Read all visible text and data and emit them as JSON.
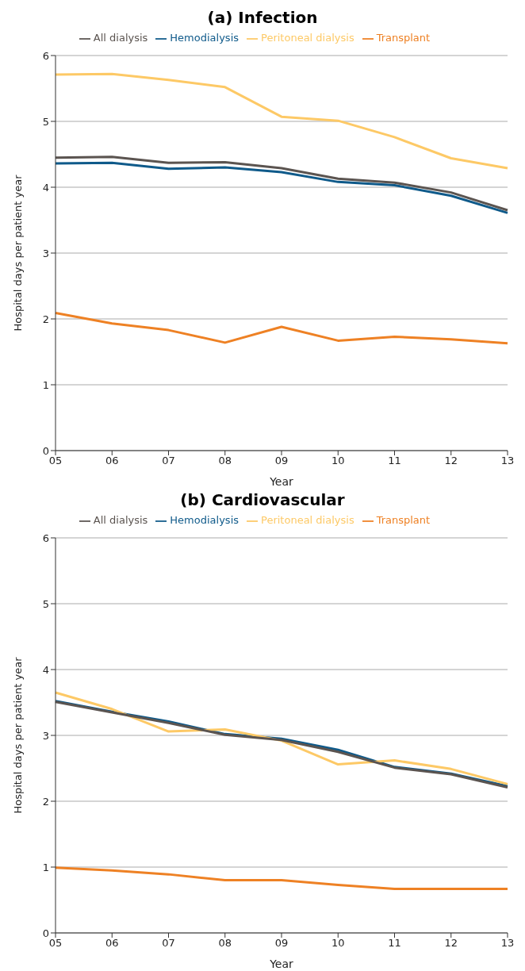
{
  "chart_data": [
    {
      "type": "line",
      "title": "(a) Infection",
      "xlabel": "Year",
      "ylabel": "Hospital days per patient year",
      "categories": [
        "05",
        "06",
        "07",
        "08",
        "09",
        "10",
        "11",
        "12",
        "13"
      ],
      "ylim": [
        0,
        6
      ],
      "yticks": [
        0,
        1,
        2,
        3,
        4,
        5,
        6
      ],
      "grid": "y",
      "legend": "top",
      "series": [
        {
          "name": "Hemodialysis",
          "color": "#0f5a8a",
          "values": [
            4.36,
            4.37,
            4.28,
            4.3,
            4.23,
            4.08,
            4.03,
            3.87,
            3.61
          ]
        },
        {
          "name": "Peritoneal dialysis",
          "color": "#fdc966",
          "values": [
            5.71,
            5.72,
            5.63,
            5.52,
            5.07,
            5.01,
            4.76,
            4.44,
            4.29
          ]
        },
        {
          "name": "Transplant",
          "color": "#ee8124",
          "values": [
            2.09,
            1.93,
            1.83,
            1.64,
            1.88,
            1.67,
            1.73,
            1.69,
            1.63
          ]
        },
        {
          "name": "All dialysis",
          "color": "#5b5450",
          "values": [
            4.45,
            4.46,
            4.37,
            4.38,
            4.29,
            4.13,
            4.07,
            3.92,
            3.65
          ]
        }
      ]
    },
    {
      "type": "line",
      "title": "(b) Cardiovascular",
      "xlabel": "Year",
      "ylabel": "Hospital days per patient year",
      "categories": [
        "05",
        "06",
        "07",
        "08",
        "09",
        "10",
        "11",
        "12",
        "13"
      ],
      "ylim": [
        0,
        6
      ],
      "yticks": [
        0,
        1,
        2,
        3,
        4,
        5,
        6
      ],
      "grid": "y",
      "legend": "top",
      "series": [
        {
          "name": "Hemodialysis",
          "color": "#0f5a8a",
          "values": [
            3.52,
            3.36,
            3.21,
            3.02,
            2.95,
            2.78,
            2.52,
            2.42,
            2.23
          ]
        },
        {
          "name": "Peritoneal dialysis",
          "color": "#fdc966",
          "values": [
            3.65,
            3.4,
            3.06,
            3.09,
            2.92,
            2.56,
            2.62,
            2.49,
            2.26
          ]
        },
        {
          "name": "Transplant",
          "color": "#ee8124",
          "values": [
            0.99,
            0.95,
            0.89,
            0.8,
            0.8,
            0.73,
            0.67,
            0.67,
            0.67
          ]
        },
        {
          "name": "All dialysis",
          "color": "#5b5450",
          "values": [
            3.51,
            3.35,
            3.19,
            3.01,
            2.93,
            2.75,
            2.51,
            2.41,
            2.21
          ]
        }
      ]
    }
  ]
}
